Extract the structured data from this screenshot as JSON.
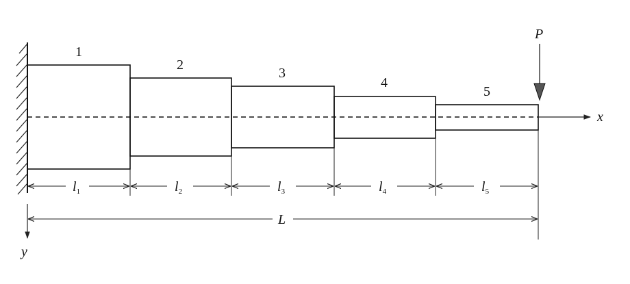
{
  "diagram": {
    "segments": [
      {
        "number": "1",
        "length_symbol": "l",
        "length_subscript": "1"
      },
      {
        "number": "2",
        "length_symbol": "l",
        "length_subscript": "2"
      },
      {
        "number": "3",
        "length_symbol": "l",
        "length_subscript": "3"
      },
      {
        "number": "4",
        "length_symbol": "l",
        "length_subscript": "4"
      },
      {
        "number": "5",
        "length_symbol": "l",
        "length_subscript": "5"
      }
    ],
    "total_length_label": "L",
    "load_label": "P",
    "x_axis_label": "x",
    "y_axis_label": "y"
  }
}
